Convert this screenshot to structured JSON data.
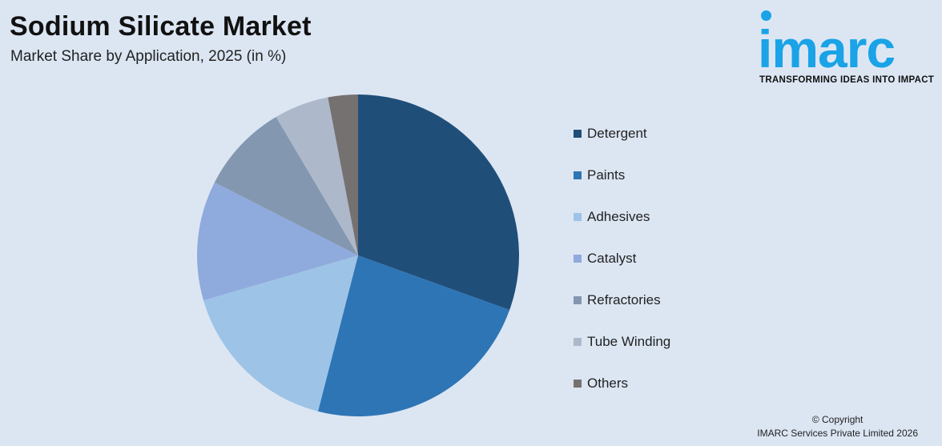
{
  "title": "Sodium Silicate Market",
  "subtitle": "Market Share by Application, 2025 (in %)",
  "logo": {
    "word": "imarc",
    "tagline": "TRANSFORMING IDEAS INTO IMPACT",
    "color": "#1aa3e6"
  },
  "copyright": {
    "line1": "© Copyright",
    "line2": "IMARC Services Private Limited 2026"
  },
  "chart_data": {
    "type": "pie",
    "title": "Sodium Silicate Market",
    "subtitle": "Market Share by Application, 2025 (in %)",
    "legend_position": "right",
    "slices": [
      {
        "label": "Detergent",
        "value": 30.5,
        "color": "#1f4e79"
      },
      {
        "label": "Paints",
        "value": 23.5,
        "color": "#2e75b6"
      },
      {
        "label": "Adhesives",
        "value": 16.5,
        "color": "#9dc3e6"
      },
      {
        "label": "Catalyst",
        "value": 12,
        "color": "#8faadc"
      },
      {
        "label": "Refractories",
        "value": 9,
        "color": "#8497b0"
      },
      {
        "label": "Tube Winding",
        "value": 5.5,
        "color": "#adb9ca"
      },
      {
        "label": "Others",
        "value": 3,
        "color": "#767171"
      }
    ]
  }
}
